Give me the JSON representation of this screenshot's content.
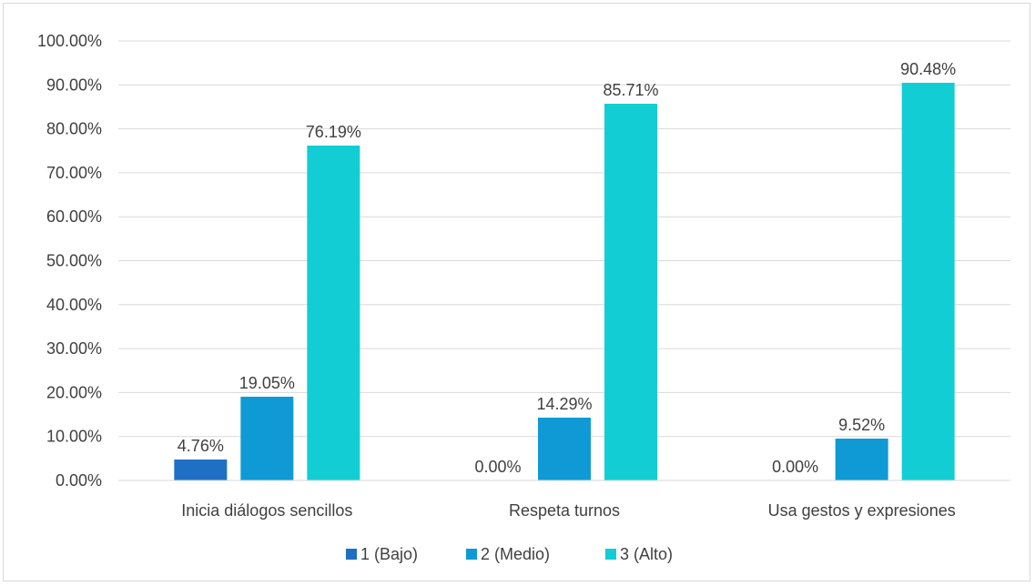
{
  "chart_data": {
    "type": "bar",
    "title": "",
    "xlabel": "",
    "ylabel": "",
    "ylim": [
      0,
      100
    ],
    "yticks": [
      "0.00%",
      "10.00%",
      "20.00%",
      "30.00%",
      "40.00%",
      "50.00%",
      "60.00%",
      "70.00%",
      "80.00%",
      "90.00%",
      "100.00%"
    ],
    "grid": true,
    "legend_position": "bottom",
    "categories": [
      "Inicia diálogos sencillos",
      "Respeta turnos",
      "Usa gestos y expresiones"
    ],
    "series": [
      {
        "name": "1 (Bajo)",
        "color": "#1f6fc5",
        "values": [
          4.76,
          0.0,
          0.0
        ],
        "labels": [
          "4.76%",
          "0.00%",
          "0.00%"
        ]
      },
      {
        "name": "2 (Medio)",
        "color": "#0f9ad6",
        "values": [
          19.05,
          14.29,
          9.52
        ],
        "labels": [
          "19.05%",
          "14.29%",
          "9.52%"
        ]
      },
      {
        "name": "3 (Alto)",
        "color": "#12cdd4",
        "values": [
          76.19,
          85.71,
          90.48
        ],
        "labels": [
          "76.19%",
          "85.71%",
          "90.48%"
        ]
      }
    ]
  }
}
